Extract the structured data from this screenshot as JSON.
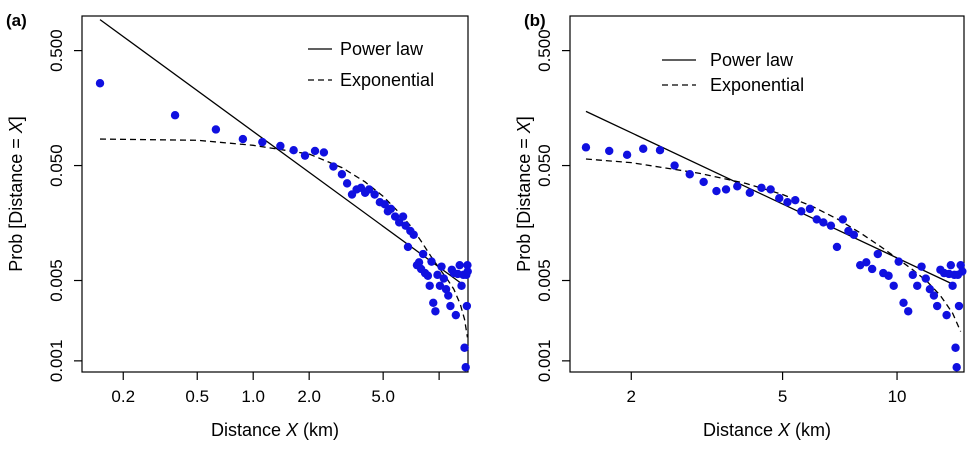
{
  "chart_data": [
    {
      "panel_label": "(a)",
      "type": "scatter",
      "xscale": "log",
      "yscale": "log",
      "xlabel_pre": "Distance ",
      "xlabel_var": "X",
      "xlabel_post": " (km)",
      "ylabel_pre": "Prob [Distance = ",
      "ylabel_var": "X",
      "ylabel_post": "]",
      "xlim": [
        0.12,
        14.3
      ],
      "ylim": [
        0.0008,
        1.0
      ],
      "xticks": [
        0.2,
        0.5,
        1.0,
        2.0,
        5.0,
        10.0
      ],
      "xticklabels": [
        "0.2",
        "0.5",
        "1.0",
        "2.0",
        "5.0",
        ""
      ],
      "yticks": [
        0.001,
        0.005,
        0.05,
        0.5
      ],
      "yticklabels": [
        "0.001",
        "0.005",
        "0.050",
        "0.500"
      ],
      "legend": {
        "position": "top-right",
        "entries": [
          {
            "label": "Power law",
            "style": "solid"
          },
          {
            "label": "Exponential",
            "style": "dashed"
          }
        ]
      },
      "points": [
        [
          0.15,
          0.26
        ],
        [
          0.38,
          0.137
        ],
        [
          0.63,
          0.103
        ],
        [
          0.88,
          0.085
        ],
        [
          1.12,
          0.08
        ],
        [
          1.4,
          0.074
        ],
        [
          1.65,
          0.068
        ],
        [
          1.9,
          0.061
        ],
        [
          2.15,
          0.067
        ],
        [
          2.4,
          0.065
        ],
        [
          2.7,
          0.049
        ],
        [
          3.0,
          0.042
        ],
        [
          3.2,
          0.035
        ],
        [
          3.4,
          0.028
        ],
        [
          3.6,
          0.031
        ],
        [
          3.8,
          0.032
        ],
        [
          4.0,
          0.029
        ],
        [
          4.2,
          0.031
        ],
        [
          4.5,
          0.028
        ],
        [
          4.8,
          0.024
        ],
        [
          5.1,
          0.023
        ],
        [
          5.3,
          0.02
        ],
        [
          5.5,
          0.021
        ],
        [
          5.8,
          0.018
        ],
        [
          6.1,
          0.016
        ],
        [
          6.4,
          0.018
        ],
        [
          6.6,
          0.015
        ],
        [
          6.8,
          0.0098
        ],
        [
          7.0,
          0.0135
        ],
        [
          7.3,
          0.0125
        ],
        [
          7.6,
          0.0068
        ],
        [
          7.8,
          0.0072
        ],
        [
          8.0,
          0.0063
        ],
        [
          8.2,
          0.0085
        ],
        [
          8.4,
          0.0058
        ],
        [
          8.7,
          0.0055
        ],
        [
          8.9,
          0.0045
        ],
        [
          9.1,
          0.0073
        ],
        [
          9.3,
          0.0032
        ],
        [
          9.55,
          0.0027
        ],
        [
          9.8,
          0.0056
        ],
        [
          10.1,
          0.0045
        ],
        [
          10.3,
          0.0066
        ],
        [
          10.6,
          0.0052
        ],
        [
          10.9,
          0.0042
        ],
        [
          11.2,
          0.0037
        ],
        [
          11.5,
          0.003
        ],
        [
          11.7,
          0.0062
        ],
        [
          12.0,
          0.0058
        ],
        [
          12.3,
          0.0025
        ],
        [
          12.6,
          0.0057
        ],
        [
          12.9,
          0.0068
        ],
        [
          13.2,
          0.0045
        ],
        [
          13.5,
          0.0056
        ],
        [
          13.7,
          0.0013
        ],
        [
          13.9,
          0.00088
        ],
        [
          14.0,
          0.0056
        ],
        [
          14.1,
          0.003
        ],
        [
          14.2,
          0.0068
        ],
        [
          14.25,
          0.006
        ]
      ],
      "power_law": [
        [
          0.15,
          0.93
        ],
        [
          13.7,
          0.0045
        ]
      ],
      "exponential": [
        [
          0.15,
          0.085
        ],
        [
          0.5,
          0.083
        ],
        [
          1.0,
          0.075
        ],
        [
          2.0,
          0.063
        ],
        [
          3.0,
          0.048
        ],
        [
          4.0,
          0.036
        ],
        [
          5.0,
          0.027
        ],
        [
          6.0,
          0.02
        ],
        [
          7.0,
          0.015
        ],
        [
          8.0,
          0.011
        ],
        [
          9.0,
          0.0082
        ],
        [
          10.0,
          0.0064
        ],
        [
          11.0,
          0.0052
        ],
        [
          12.0,
          0.0042
        ],
        [
          13.0,
          0.0031
        ],
        [
          13.7,
          0.0023
        ],
        [
          14.2,
          0.0016
        ]
      ]
    },
    {
      "panel_label": "(b)",
      "type": "scatter",
      "xscale": "log",
      "yscale": "log",
      "xlabel_pre": "Distance ",
      "xlabel_var": "X",
      "xlabel_post": " (km)",
      "ylabel_pre": "Prob [Distance = ",
      "ylabel_var": "X",
      "ylabel_post": "]",
      "xlim": [
        1.38,
        15.0
      ],
      "ylim": [
        0.0008,
        1.0
      ],
      "xticks": [
        2,
        5,
        10
      ],
      "xticklabels": [
        "2",
        "5",
        "10"
      ],
      "yticks": [
        0.001,
        0.005,
        0.05,
        0.5
      ],
      "yticklabels": [
        "0.001",
        "0.005",
        "0.050",
        "0.500"
      ],
      "legend": {
        "position": "top-left",
        "entries": [
          {
            "label": "Power law",
            "style": "solid"
          },
          {
            "label": "Exponential",
            "style": "dashed"
          }
        ]
      },
      "points": [
        [
          1.52,
          0.072
        ],
        [
          1.75,
          0.067
        ],
        [
          1.95,
          0.062
        ],
        [
          2.15,
          0.07
        ],
        [
          2.38,
          0.068
        ],
        [
          2.6,
          0.05
        ],
        [
          2.85,
          0.042
        ],
        [
          3.1,
          0.036
        ],
        [
          3.35,
          0.03
        ],
        [
          3.55,
          0.031
        ],
        [
          3.8,
          0.033
        ],
        [
          4.1,
          0.029
        ],
        [
          4.4,
          0.032
        ],
        [
          4.65,
          0.031
        ],
        [
          4.9,
          0.026
        ],
        [
          5.15,
          0.024
        ],
        [
          5.4,
          0.025
        ],
        [
          5.6,
          0.02
        ],
        [
          5.9,
          0.021
        ],
        [
          6.15,
          0.017
        ],
        [
          6.4,
          0.016
        ],
        [
          6.7,
          0.015
        ],
        [
          6.95,
          0.0098
        ],
        [
          7.2,
          0.017
        ],
        [
          7.45,
          0.0135
        ],
        [
          7.7,
          0.0125
        ],
        [
          8.0,
          0.0068
        ],
        [
          8.3,
          0.0072
        ],
        [
          8.6,
          0.0063
        ],
        [
          8.9,
          0.0085
        ],
        [
          9.2,
          0.0058
        ],
        [
          9.5,
          0.0055
        ],
        [
          9.8,
          0.0045
        ],
        [
          10.1,
          0.0073
        ],
        [
          10.4,
          0.0032
        ],
        [
          10.7,
          0.0027
        ],
        [
          11.0,
          0.0056
        ],
        [
          11.3,
          0.0045
        ],
        [
          11.6,
          0.0066
        ],
        [
          11.9,
          0.0052
        ],
        [
          12.2,
          0.0042
        ],
        [
          12.5,
          0.0037
        ],
        [
          12.75,
          0.003
        ],
        [
          13.0,
          0.0062
        ],
        [
          13.3,
          0.0058
        ],
        [
          13.5,
          0.0025
        ],
        [
          13.7,
          0.0057
        ],
        [
          13.85,
          0.0068
        ],
        [
          14.0,
          0.0045
        ],
        [
          14.15,
          0.0056
        ],
        [
          14.25,
          0.0013
        ],
        [
          14.35,
          0.00088
        ],
        [
          14.45,
          0.0056
        ],
        [
          14.55,
          0.003
        ],
        [
          14.7,
          0.0068
        ],
        [
          14.85,
          0.006
        ]
      ],
      "power_law": [
        [
          1.52,
          0.148
        ],
        [
          14.3,
          0.0045
        ]
      ],
      "exponential": [
        [
          1.52,
          0.057
        ],
        [
          2.0,
          0.053
        ],
        [
          3.0,
          0.043
        ],
        [
          4.0,
          0.035
        ],
        [
          5.0,
          0.028
        ],
        [
          6.0,
          0.022
        ],
        [
          7.0,
          0.017
        ],
        [
          8.0,
          0.013
        ],
        [
          9.0,
          0.01
        ],
        [
          10.0,
          0.0078
        ],
        [
          11.0,
          0.0062
        ],
        [
          12.0,
          0.0049
        ],
        [
          13.0,
          0.0037
        ],
        [
          14.0,
          0.0026
        ],
        [
          14.7,
          0.0018
        ]
      ]
    }
  ],
  "colors": {
    "points": "#1010e0",
    "lines": "#000000",
    "axes": "#000000"
  }
}
